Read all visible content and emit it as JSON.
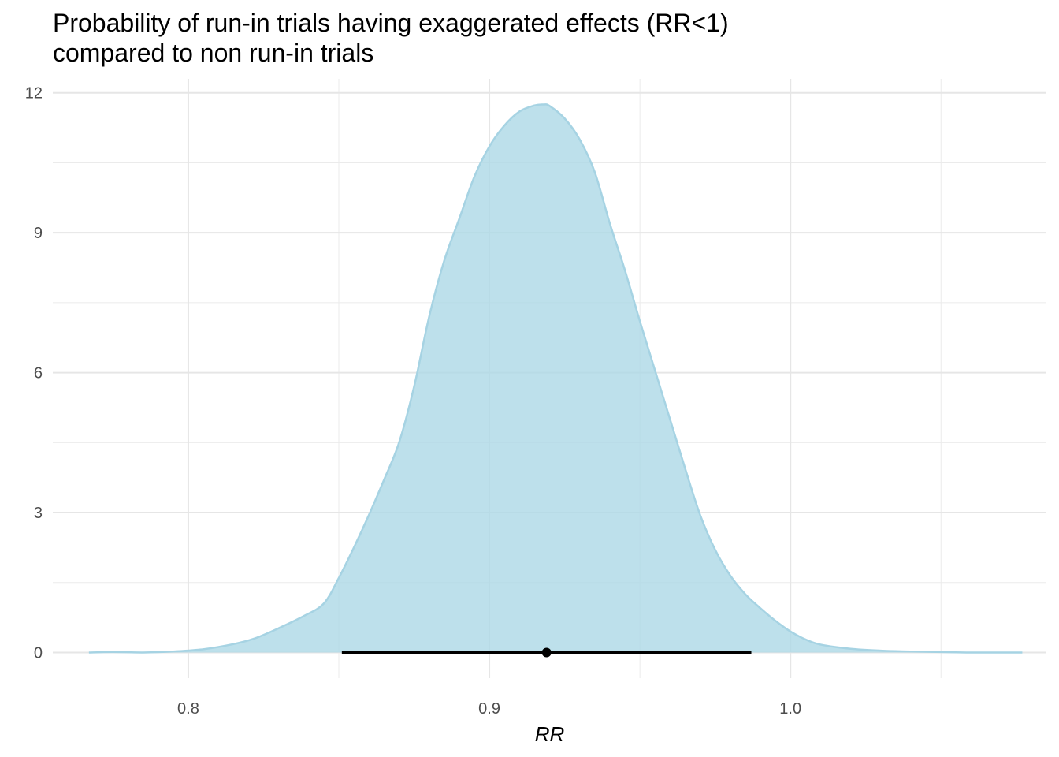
{
  "title_line1": "Probability of run-in trials having exaggerated effects (RR<1)",
  "title_line2": "compared to non run-in trials",
  "chart_data": {
    "type": "area",
    "title": "Probability of run-in trials having exaggerated effects (RR<1) compared to non run-in trials",
    "xlabel": "RR",
    "ylabel": "",
    "xlim": [
      0.755,
      1.085
    ],
    "ylim": [
      -0.55,
      12.3
    ],
    "x_ticks": [
      0.8,
      0.9,
      1.0
    ],
    "x_tick_labels": [
      "0.8",
      "0.9",
      "1.0"
    ],
    "y_ticks": [
      0,
      3,
      6,
      9,
      12
    ],
    "y_tick_labels": [
      "0",
      "3",
      "6",
      "9",
      "12"
    ],
    "grid": true,
    "fill_color": "#add8e6",
    "line_color": "#a6d3e3",
    "density": {
      "x": [
        0.767,
        0.775,
        0.785,
        0.795,
        0.805,
        0.815,
        0.822,
        0.83,
        0.838,
        0.845,
        0.85,
        0.855,
        0.86,
        0.865,
        0.87,
        0.875,
        0.88,
        0.885,
        0.89,
        0.895,
        0.9,
        0.905,
        0.91,
        0.915,
        0.918,
        0.92,
        0.925,
        0.93,
        0.935,
        0.94,
        0.945,
        0.95,
        0.955,
        0.96,
        0.965,
        0.97,
        0.975,
        0.98,
        0.985,
        0.99,
        0.995,
        1.0,
        1.005,
        1.01,
        1.02,
        1.03,
        1.04,
        1.05,
        1.06,
        1.077
      ],
      "y": [
        0.0,
        0.01,
        0.0,
        0.02,
        0.07,
        0.18,
        0.3,
        0.52,
        0.77,
        1.05,
        1.6,
        2.25,
        2.95,
        3.7,
        4.5,
        5.7,
        7.2,
        8.4,
        9.3,
        10.2,
        10.85,
        11.3,
        11.6,
        11.73,
        11.75,
        11.72,
        11.45,
        11.0,
        10.3,
        9.2,
        8.2,
        7.1,
        6.05,
        5.0,
        3.95,
        2.95,
        2.2,
        1.65,
        1.25,
        0.95,
        0.68,
        0.45,
        0.28,
        0.17,
        0.08,
        0.04,
        0.02,
        0.01,
        0.0,
        0.0
      ]
    },
    "point_interval": {
      "point": 0.919,
      "lower": 0.851,
      "upper": 0.987,
      "y": 0
    }
  }
}
